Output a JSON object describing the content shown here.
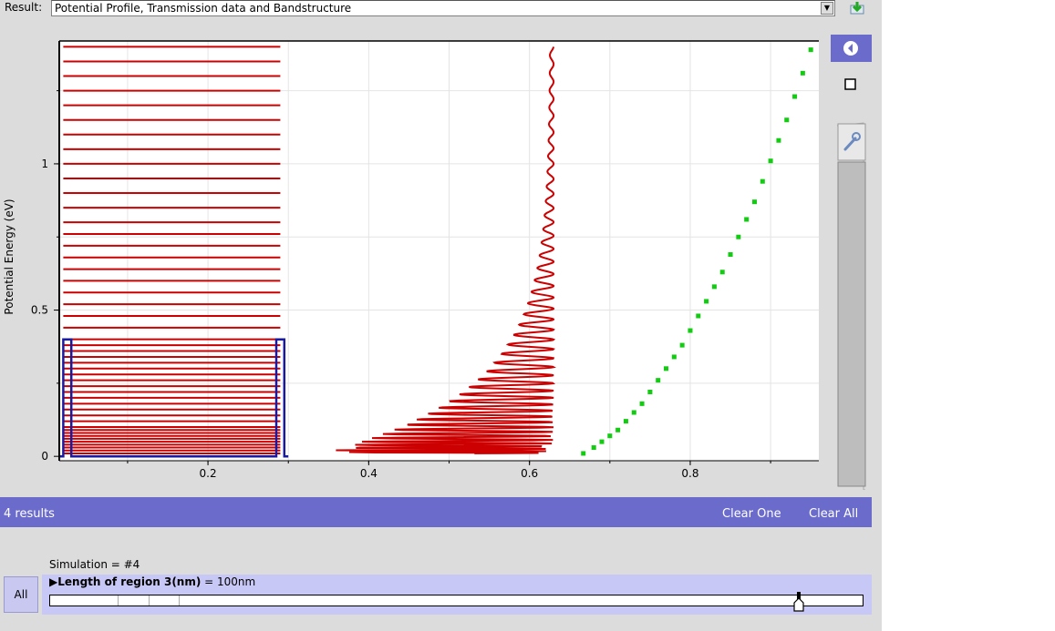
{
  "result": {
    "label": "Result:",
    "selected": "Potential Profile, Transmission data and Bandstructure"
  },
  "icons": {
    "dropdown": "chevron-down-icon",
    "download": "download-icon",
    "nav_back": "arrow-left-circle-icon",
    "box": "square-icon",
    "wrench": "wrench-icon"
  },
  "colors": {
    "red_series": "#cc0000",
    "blue_series": "#1a1aa0",
    "green_series": "#11cc11",
    "results_bar": "#6b6bcc",
    "param_panel": "#c8c8f7"
  },
  "chart_data": {
    "type": "line",
    "ylabel": "Potential Energy (eV)",
    "xlabel": "",
    "xlim": [
      0.015,
      0.96
    ],
    "ylim": [
      -0.015,
      1.42
    ],
    "x_ticks": [
      0.2,
      0.4,
      0.6,
      0.8
    ],
    "x_tick_labels": [
      "0.2",
      "0.4",
      "0.6",
      "0.8"
    ],
    "y_ticks": [
      0,
      0.5,
      1
    ],
    "y_tick_labels": [
      "0",
      "0.5",
      "1"
    ],
    "grid": true,
    "series": [
      {
        "kind": "step",
        "color": "#1a1aa0",
        "x": [
          0.015,
          0.02,
          0.02,
          0.03,
          0.03,
          0.285,
          0.285,
          0.295,
          0.295,
          0.3
        ],
        "y": [
          0,
          0,
          0.4,
          0.4,
          0,
          0,
          0.4,
          0.4,
          0,
          0
        ]
      }
    ],
    "energy_levels": {
      "color": "#cc0000",
      "x_start": 0.02,
      "x_end": 0.29,
      "y": [
        0.01,
        0.02,
        0.03,
        0.04,
        0.05,
        0.06,
        0.07,
        0.08,
        0.09,
        0.1,
        0.12,
        0.14,
        0.16,
        0.18,
        0.2,
        0.22,
        0.24,
        0.26,
        0.28,
        0.3,
        0.32,
        0.34,
        0.36,
        0.38,
        0.4,
        0.44,
        0.48,
        0.52,
        0.56,
        0.6,
        0.64,
        0.68,
        0.72,
        0.76,
        0.8,
        0.85,
        0.9,
        0.95,
        1.0,
        1.05,
        1.1,
        1.15,
        1.2,
        1.25,
        1.3,
        1.35,
        1.4
      ]
    },
    "transmission": {
      "color": "#cc0000",
      "x_peak": 0.63,
      "x_min": 0.33,
      "y_range": [
        0.01,
        1.4
      ]
    },
    "bandstructure": {
      "color": "#11cc11",
      "x": [
        0.667,
        0.68,
        0.69,
        0.7,
        0.71,
        0.72,
        0.73,
        0.74,
        0.75,
        0.76,
        0.77,
        0.78,
        0.79,
        0.8,
        0.81,
        0.82,
        0.83,
        0.84,
        0.85,
        0.86,
        0.87,
        0.88,
        0.89,
        0.9,
        0.91,
        0.92,
        0.93,
        0.94,
        0.95
      ],
      "y": [
        0.01,
        0.03,
        0.05,
        0.07,
        0.09,
        0.12,
        0.15,
        0.18,
        0.22,
        0.26,
        0.3,
        0.34,
        0.38,
        0.43,
        0.48,
        0.53,
        0.58,
        0.63,
        0.69,
        0.75,
        0.81,
        0.87,
        0.94,
        1.01,
        1.08,
        1.15,
        1.23,
        1.31,
        1.39
      ]
    }
  },
  "results_bar": {
    "count": "4 results",
    "clear_one": "Clear One",
    "clear_all": "Clear All"
  },
  "simulation": {
    "label": "Simulation = #4",
    "all_button": "All",
    "param_name": "Length of region 3(nm)",
    "param_value": " = 100nm",
    "slider_fraction": 0.92
  }
}
